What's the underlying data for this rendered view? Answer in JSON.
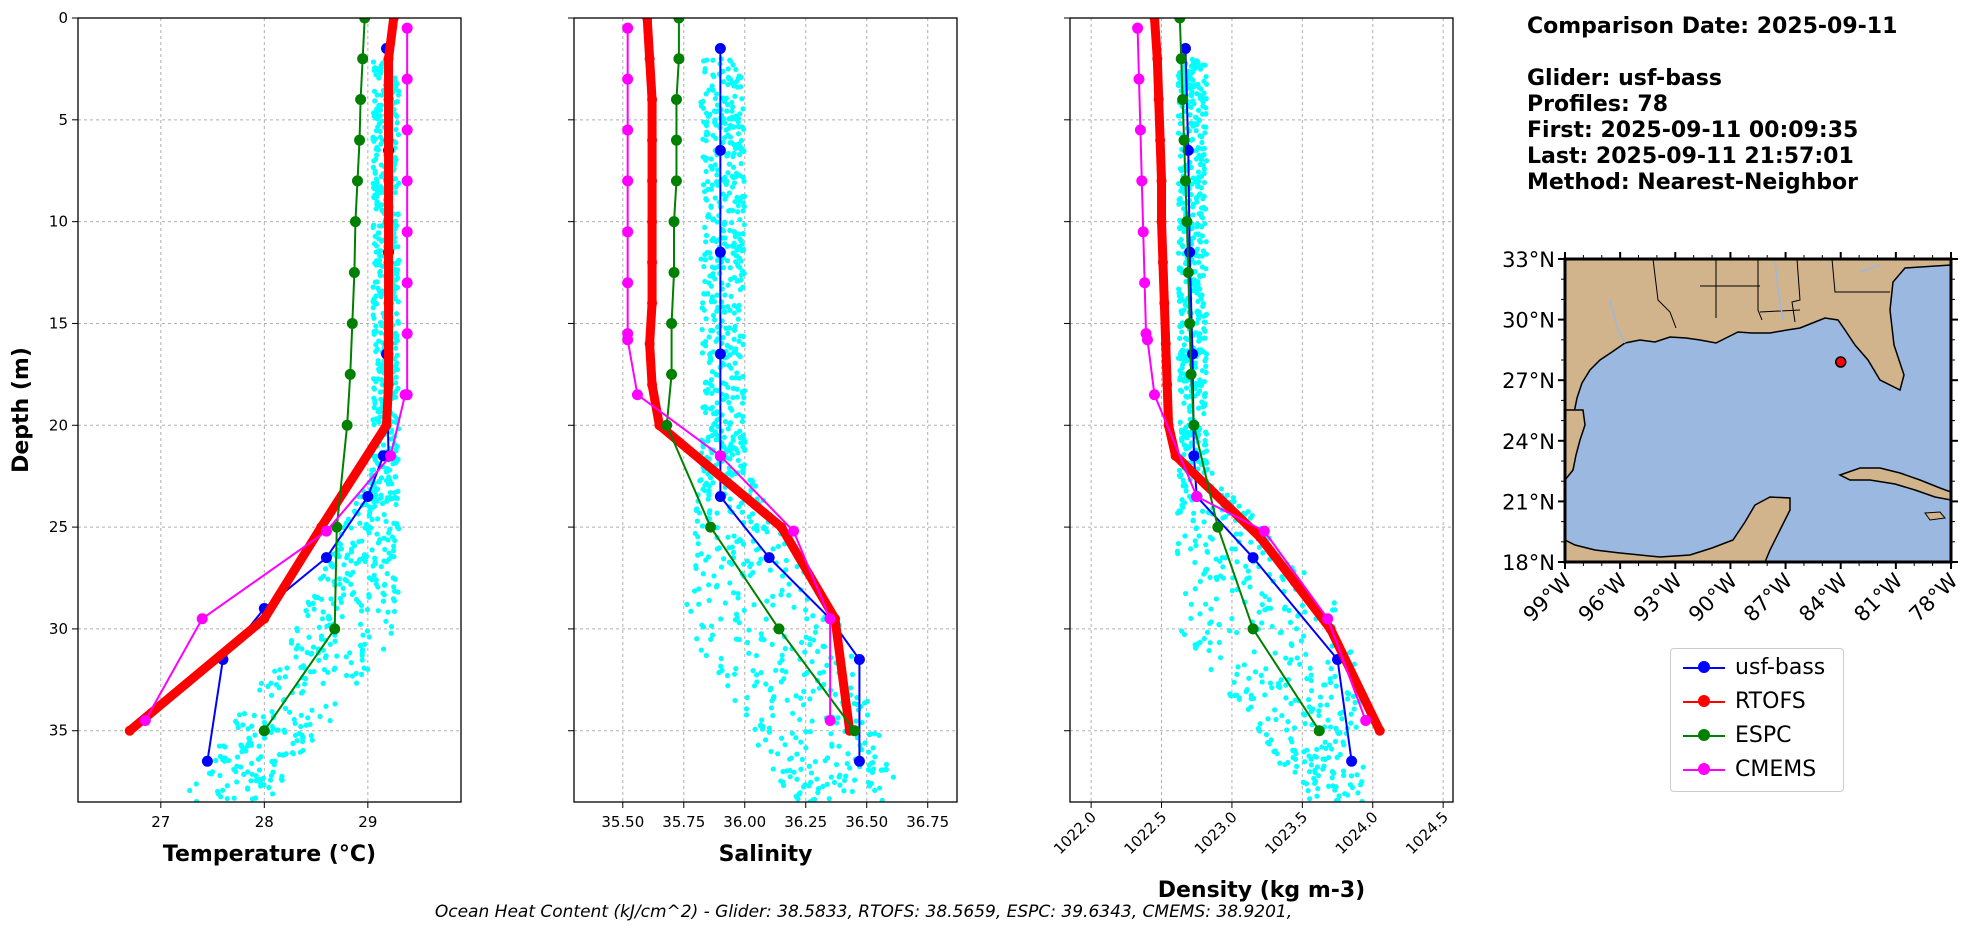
{
  "info": {
    "comparison_date": "Comparison Date: 2025-09-11",
    "glider": "Glider: usf-bass",
    "profiles": "Profiles: 78",
    "first": "First: 2025-09-11 00:09:35",
    "last": "Last: 2025-09-11 21:57:01",
    "method": "Method: Nearest-Neighbor"
  },
  "footer": "Ocean Heat Content (kJ/cm^2) - Glider: 38.5833,  RTOFS: 38.5659,  ESPC: 39.6343,  CMEMS: 38.9201,",
  "colors": {
    "glider": "#0000ff",
    "rtofs": "#ff0000",
    "espc": "#008000",
    "cmems": "#ff00ff",
    "scatter": "#00ffff",
    "land": "#d2b48c",
    "ocean": "#9bb8e0"
  },
  "legend": [
    {
      "label": "usf-bass",
      "color": "#0000ff"
    },
    {
      "label": "RTOFS",
      "color": "#ff0000"
    },
    {
      "label": "ESPC",
      "color": "#008000"
    },
    {
      "label": "CMEMS",
      "color": "#ff00ff"
    }
  ],
  "chart_data": [
    {
      "type": "line",
      "xlabel": "Temperature (°C)",
      "ylabel": "Depth (m)",
      "xlim": [
        26.2,
        29.9
      ],
      "ylim": [
        38.5,
        0
      ],
      "xticks": [
        "27",
        "28",
        "29"
      ],
      "yticks": [
        "0",
        "5",
        "10",
        "15",
        "20",
        "25",
        "30",
        "35"
      ],
      "grid": true,
      "scatter_cloud": {
        "name": "glider raw",
        "x_upper": [
          29.05,
          29.3
        ],
        "x_mid": [
          28.3,
          29.3
        ],
        "x_lower": [
          27.2,
          28.05
        ],
        "depth": [
          2,
          38.5
        ]
      },
      "series": [
        {
          "name": "usf-bass",
          "x": [
            29.18,
            29.2,
            29.2,
            29.18,
            29.2,
            29.2,
            29.2,
            29.15,
            29.0,
            28.6,
            28.0,
            27.6,
            27.45
          ],
          "y": [
            1.5,
            6.5,
            11.5,
            16.5,
            21.5,
            21.5,
            21.5,
            21.5,
            23.5,
            26.5,
            29.0,
            31.5,
            36.5
          ]
        },
        {
          "name": "RTOFS",
          "x": [
            29.25,
            29.2,
            29.2,
            29.2,
            29.2,
            29.2,
            29.2,
            29.2,
            29.2,
            29.2,
            29.18,
            28.55,
            28.0,
            26.7
          ],
          "y": [
            0,
            2,
            4,
            6,
            8,
            10,
            12,
            14,
            16,
            18,
            20,
            25,
            29.5,
            35
          ]
        },
        {
          "name": "ESPC",
          "x": [
            28.97,
            28.95,
            28.93,
            28.92,
            28.9,
            28.88,
            28.87,
            28.85,
            28.83,
            28.8,
            28.7,
            28.68,
            28.0
          ],
          "y": [
            0,
            2,
            4,
            6,
            8,
            10,
            12.5,
            15,
            17.5,
            20,
            25,
            30,
            35
          ]
        },
        {
          "name": "CMEMS",
          "x": [
            29.38,
            29.38,
            29.38,
            29.38,
            29.38,
            29.38,
            29.38,
            29.38,
            29.36,
            29.22,
            28.6,
            27.4,
            26.85
          ],
          "y": [
            0.5,
            3,
            5.5,
            8,
            10.5,
            13,
            15.5,
            18.5,
            18.5,
            21.5,
            25.2,
            29.5,
            34.5
          ]
        }
      ]
    },
    {
      "type": "line",
      "xlabel": "Salinity",
      "xlim": [
        35.3,
        36.87
      ],
      "ylim": [
        38.5,
        0
      ],
      "xticks": [
        "35.50",
        "35.75",
        "36.00",
        "36.25",
        "36.50",
        "36.75"
      ],
      "grid": true,
      "scatter_cloud": {
        "name": "glider raw",
        "x_upper": [
          35.82,
          36.0
        ],
        "x_mid": [
          35.75,
          36.4
        ],
        "x_lower": [
          36.2,
          36.65
        ],
        "depth": [
          2,
          38.5
        ]
      },
      "series": [
        {
          "name": "usf-bass",
          "x": [
            35.9,
            35.9,
            35.9,
            35.9,
            35.9,
            35.9,
            36.1,
            36.35,
            36.47,
            36.47
          ],
          "y": [
            1.5,
            6.5,
            11.5,
            16.5,
            21.5,
            23.5,
            26.5,
            29.5,
            31.5,
            36.5
          ]
        },
        {
          "name": "RTOFS",
          "x": [
            35.6,
            35.61,
            35.62,
            35.62,
            35.62,
            35.62,
            35.62,
            35.62,
            35.61,
            35.62,
            35.65,
            36.15,
            36.37,
            36.43
          ],
          "y": [
            0,
            2,
            4,
            6,
            8,
            10,
            12,
            14,
            16,
            18,
            20,
            25,
            29.5,
            35
          ]
        },
        {
          "name": "ESPC",
          "x": [
            35.73,
            35.73,
            35.72,
            35.72,
            35.72,
            35.71,
            35.71,
            35.7,
            35.7,
            35.68,
            35.86,
            36.14,
            36.45
          ],
          "y": [
            0,
            2,
            4,
            6,
            8,
            10,
            12.5,
            15,
            17.5,
            20,
            25,
            30,
            35
          ]
        },
        {
          "name": "CMEMS",
          "x": [
            35.52,
            35.52,
            35.52,
            35.52,
            35.52,
            35.52,
            35.52,
            35.52,
            35.56,
            35.9,
            36.2,
            36.35,
            36.35
          ],
          "y": [
            0.5,
            3,
            5.5,
            8,
            10.5,
            13,
            15.5,
            15.8,
            18.5,
            21.5,
            25.2,
            29.5,
            34.5
          ]
        }
      ]
    },
    {
      "type": "line",
      "xlabel": "Density (kg m-3)",
      "xlim": [
        1021.85,
        1024.57
      ],
      "ylim": [
        38.5,
        0
      ],
      "xticks": [
        "1022.0",
        "1022.5",
        "1023.0",
        "1023.5",
        "1024.0",
        "1024.5"
      ],
      "grid": true,
      "scatter_cloud": {
        "name": "glider raw",
        "x_upper": [
          1022.62,
          1022.82
        ],
        "x_mid": [
          1022.6,
          1023.9
        ],
        "x_lower": [
          1023.55,
          1023.95
        ],
        "depth": [
          2,
          38.5
        ]
      },
      "series": [
        {
          "name": "usf-bass",
          "x": [
            1022.67,
            1022.69,
            1022.7,
            1022.72,
            1022.73,
            1022.75,
            1023.15,
            1023.75,
            1023.85
          ],
          "y": [
            1.5,
            6.5,
            11.5,
            16.5,
            21.5,
            23.5,
            26.5,
            31.5,
            36.5
          ]
        },
        {
          "name": "RTOFS",
          "x": [
            1022.45,
            1022.47,
            1022.48,
            1022.49,
            1022.5,
            1022.5,
            1022.51,
            1022.52,
            1022.53,
            1022.54,
            1022.55,
            1022.6,
            1023.2,
            1023.7,
            1024.05
          ],
          "y": [
            0,
            2,
            4,
            6,
            8,
            10,
            12,
            14,
            16,
            18,
            20,
            21.5,
            25.5,
            30,
            35
          ]
        },
        {
          "name": "ESPC",
          "x": [
            1022.63,
            1022.64,
            1022.65,
            1022.66,
            1022.67,
            1022.68,
            1022.69,
            1022.7,
            1022.71,
            1022.73,
            1022.9,
            1023.15,
            1023.62
          ],
          "y": [
            0,
            2,
            4,
            6,
            8,
            10,
            12.5,
            15,
            17.5,
            20,
            25,
            30,
            35
          ]
        },
        {
          "name": "CMEMS",
          "x": [
            1022.33,
            1022.34,
            1022.35,
            1022.36,
            1022.37,
            1022.38,
            1022.39,
            1022.4,
            1022.45,
            1022.75,
            1023.23,
            1023.68,
            1023.95
          ],
          "y": [
            0.5,
            3,
            5.5,
            8,
            10.5,
            13,
            15.5,
            15.8,
            18.5,
            23.5,
            25.2,
            29.5,
            34.5
          ]
        }
      ]
    },
    {
      "type": "map",
      "lon_range": [
        -99,
        -78
      ],
      "lat_range": [
        18,
        33
      ],
      "lon_ticks": [
        "99°W",
        "96°W",
        "93°W",
        "90°W",
        "87°W",
        "84°W",
        "81°W",
        "78°W"
      ],
      "lat_ticks": [
        "18°N",
        "21°N",
        "24°N",
        "27°N",
        "30°N",
        "33°N"
      ],
      "glider_location": {
        "lon": -84.0,
        "lat": 27.9
      }
    }
  ]
}
